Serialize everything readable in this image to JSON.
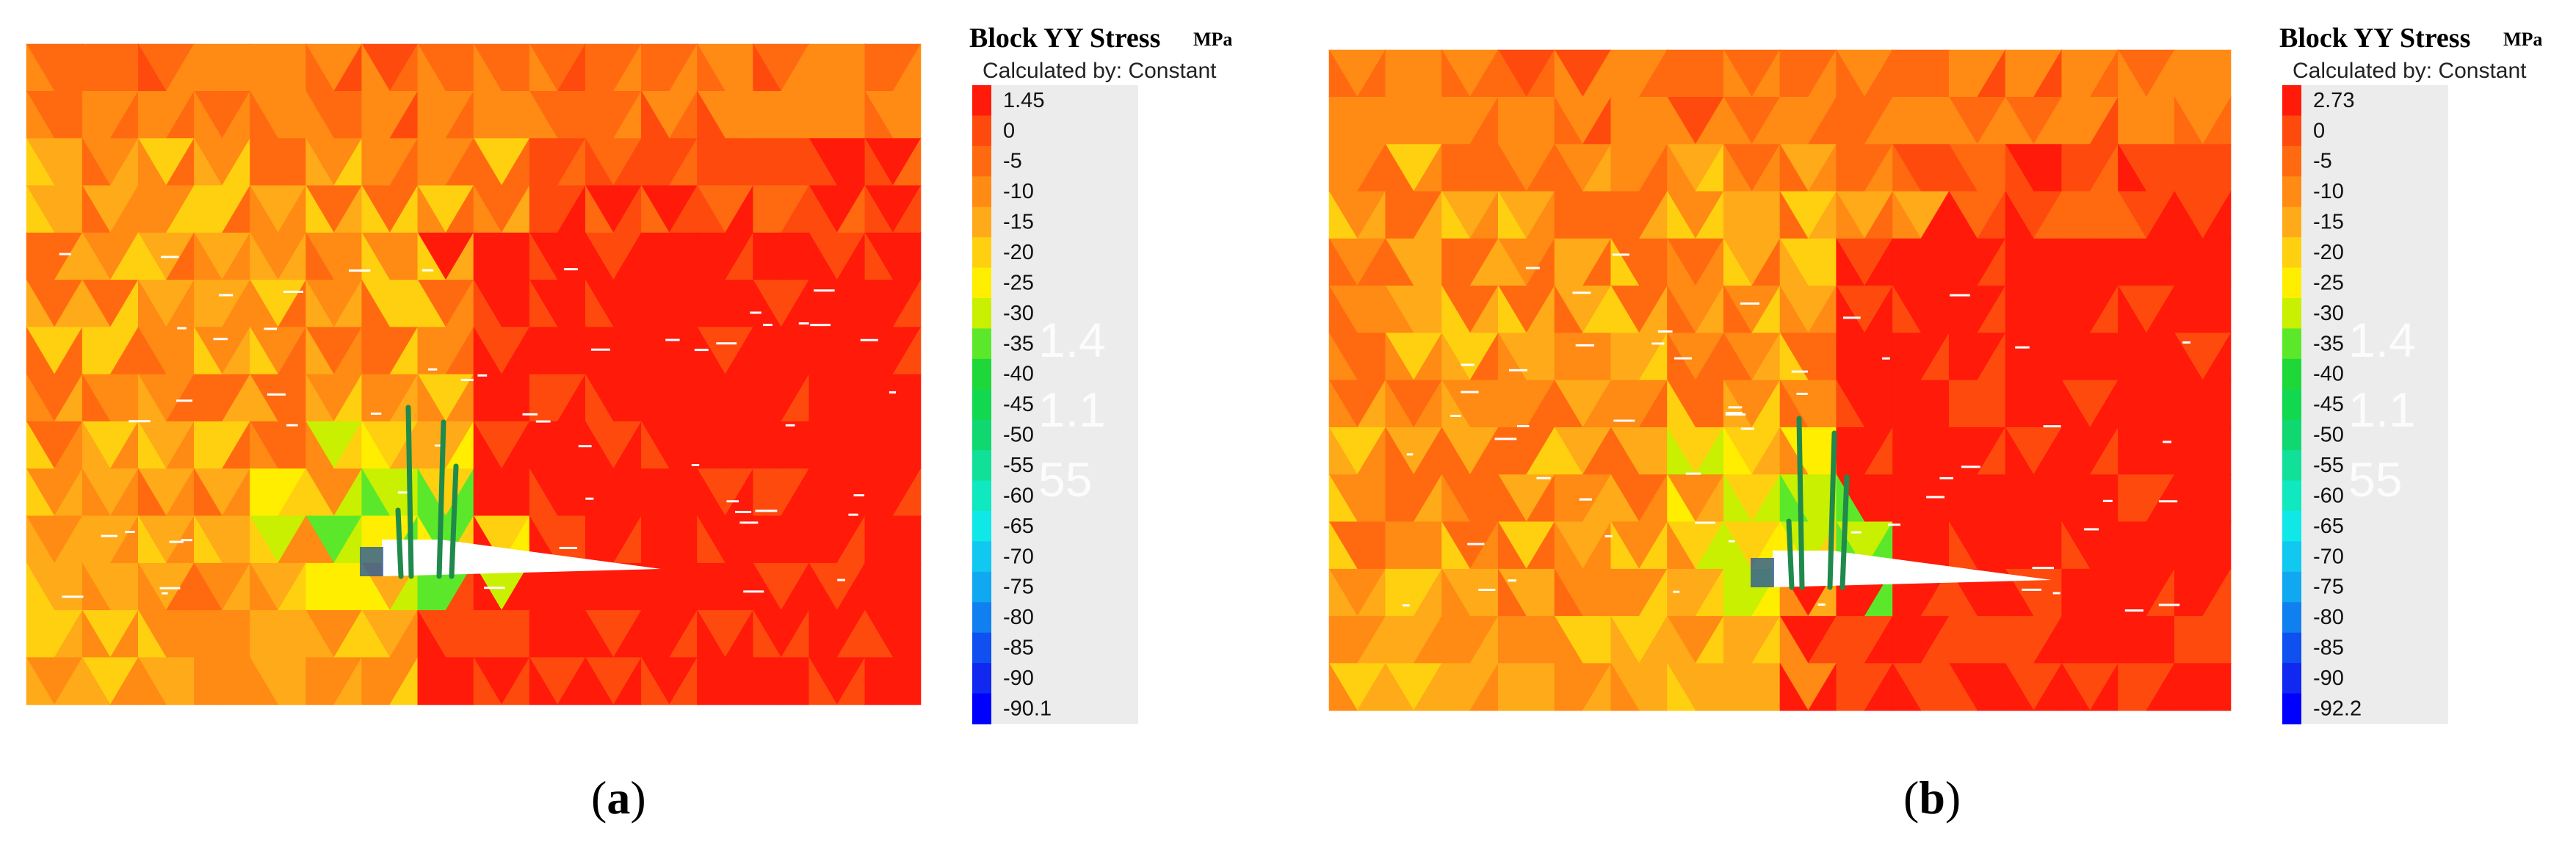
{
  "panels": [
    {
      "id": "a",
      "caption_letter": "a",
      "legend": {
        "title": "Block YY Stress",
        "unit": "MPa",
        "calculated_by": "Calculated by: Constant",
        "ticks": [
          "1.45",
          "0",
          "-5",
          "-10",
          "-15",
          "-20",
          "-25",
          "-30",
          "-35",
          "-40",
          "-45",
          "-50",
          "-55",
          "-60",
          "-65",
          "-70",
          "-75",
          "-80",
          "-85",
          "-90",
          "-90.1"
        ],
        "ghost_labels": [
          "1.4",
          "1.1",
          "55"
        ]
      }
    },
    {
      "id": "b",
      "caption_letter": "b",
      "legend": {
        "title": "Block YY Stress",
        "unit": "MPa",
        "calculated_by": "Calculated by: Constant",
        "ticks": [
          "2.73",
          "0",
          "-5",
          "-10",
          "-15",
          "-20",
          "-25",
          "-30",
          "-35",
          "-40",
          "-45",
          "-50",
          "-55",
          "-60",
          "-65",
          "-70",
          "-75",
          "-80",
          "-85",
          "-90",
          "-92.2"
        ],
        "ghost_labels": [
          "1.4",
          "1.1",
          "55"
        ]
      }
    }
  ],
  "colors": {
    "scale": [
      "#ff1a0a",
      "#ff4a0e",
      "#ff6a10",
      "#ff8a14",
      "#ffaa18",
      "#ffd010",
      "#ffee00",
      "#c8f000",
      "#5ce82a",
      "#1ed83a",
      "#12d850",
      "#10d870",
      "#10e098",
      "#10e8c0",
      "#10e8e8",
      "#10c8f0",
      "#10a8f0",
      "#1080f0",
      "#1050f0",
      "#1028f0",
      "#0000ff"
    ],
    "support": "#1f8a4c",
    "opening": "#ffffff"
  }
}
